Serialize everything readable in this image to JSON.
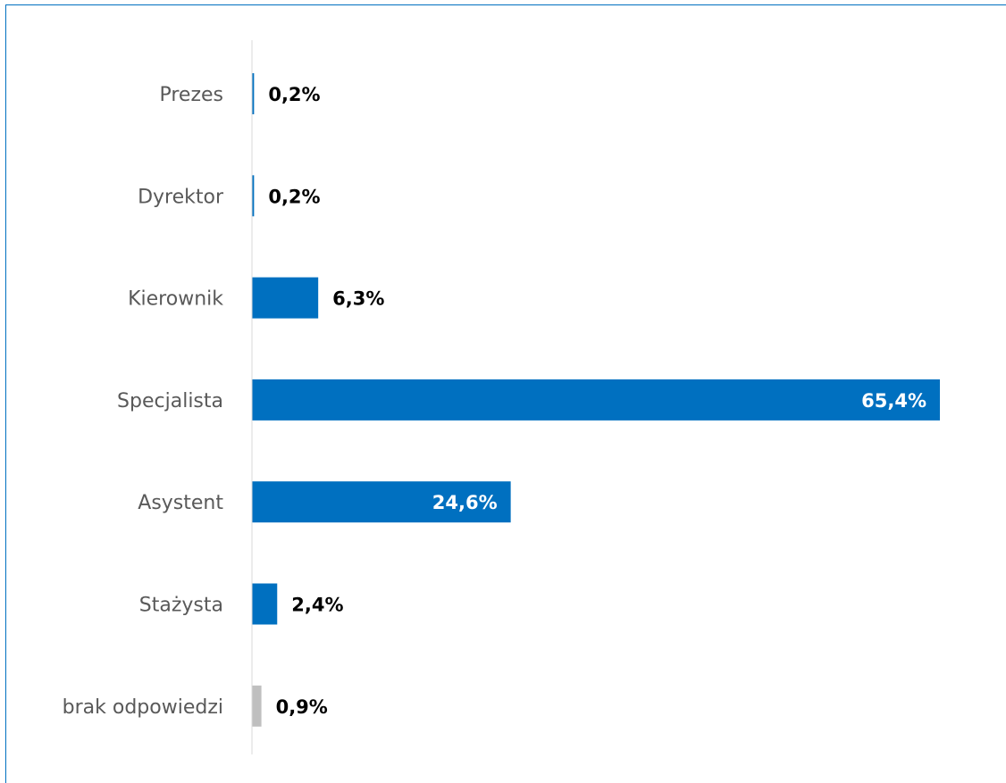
{
  "chart_data": {
    "type": "bar",
    "orientation": "horizontal",
    "categories": [
      "Prezes",
      "Dyrektor",
      "Kierownik",
      "Specjalista",
      "Asystent",
      "Stażysta",
      "brak odpowiedzi"
    ],
    "values": [
      0.2,
      0.2,
      6.3,
      65.4,
      24.6,
      2.4,
      0.9
    ],
    "value_labels": [
      "0,2%",
      "0,2%",
      "6,3%",
      "65,4%",
      "24,6%",
      "2,4%",
      "0,9%"
    ],
    "bar_colors": [
      "#0070c0",
      "#0070c0",
      "#0070c0",
      "#0070c0",
      "#0070c0",
      "#0070c0",
      "#bfbfbf"
    ],
    "label_colors": {
      "outside": "#000000",
      "inside": "#ffffff"
    },
    "axis_line_color": "#d9d9d9",
    "xlim": [
      0,
      70
    ],
    "grid": false,
    "title": "",
    "xlabel": "",
    "ylabel": ""
  }
}
